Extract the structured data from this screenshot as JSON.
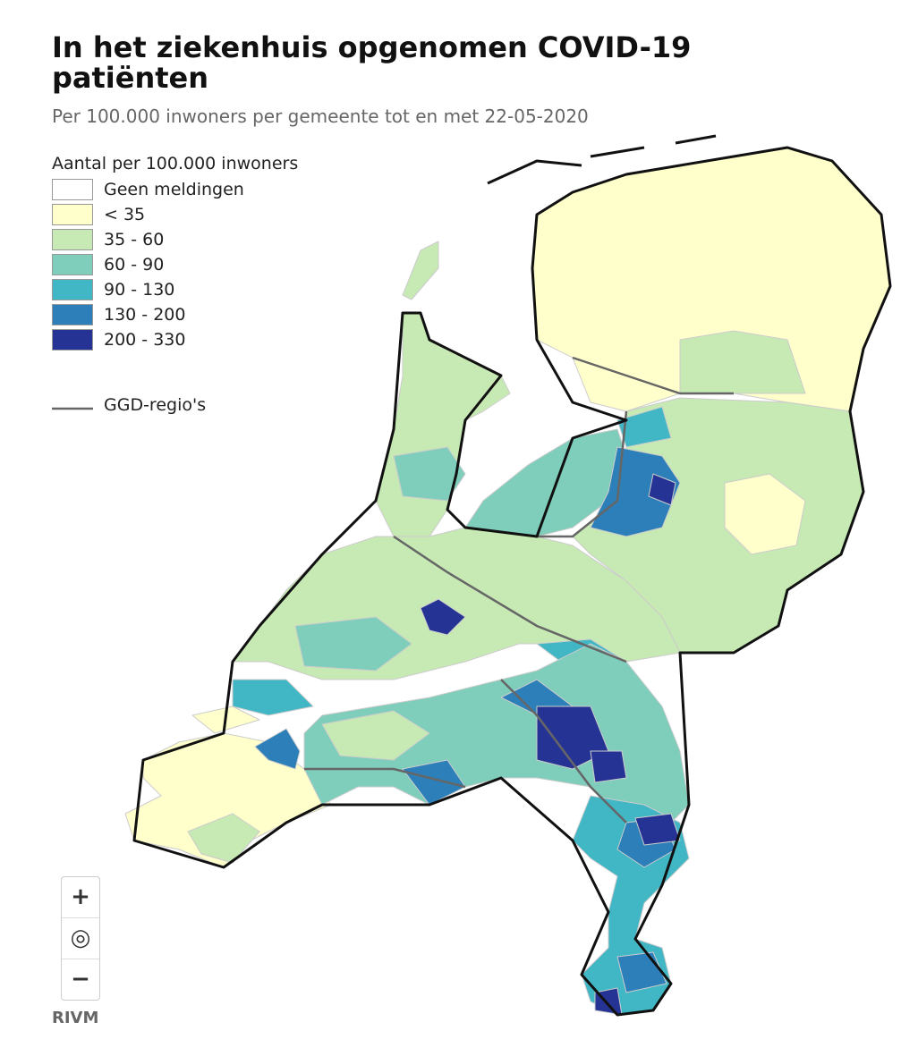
{
  "header": {
    "title": "In het ziekenhuis opgenomen COVID-19 patiënten",
    "subtitle": "Per 100.000 inwoners per gemeente tot en met 22-05-2020"
  },
  "legend": {
    "title": "Aantal per 100.000 inwoners",
    "items": [
      {
        "label": "Geen meldingen",
        "color": "#ffffff"
      },
      {
        "label": "< 35",
        "color": "#ffffcc"
      },
      {
        "label": "35 - 60",
        "color": "#c7e9b4"
      },
      {
        "label": "60 - 90",
        "color": "#7fcdbb"
      },
      {
        "label": "90 - 130",
        "color": "#41b6c4"
      },
      {
        "label": "130 - 200",
        "color": "#2c7fb8"
      },
      {
        "label": "200 - 330",
        "color": "#253494"
      }
    ],
    "line": {
      "label": "GGD-regio's",
      "color": "#666666"
    }
  },
  "controls": {
    "zoom_in": "+",
    "locate": "◎",
    "zoom_out": "−"
  },
  "credit": "RIVM"
}
